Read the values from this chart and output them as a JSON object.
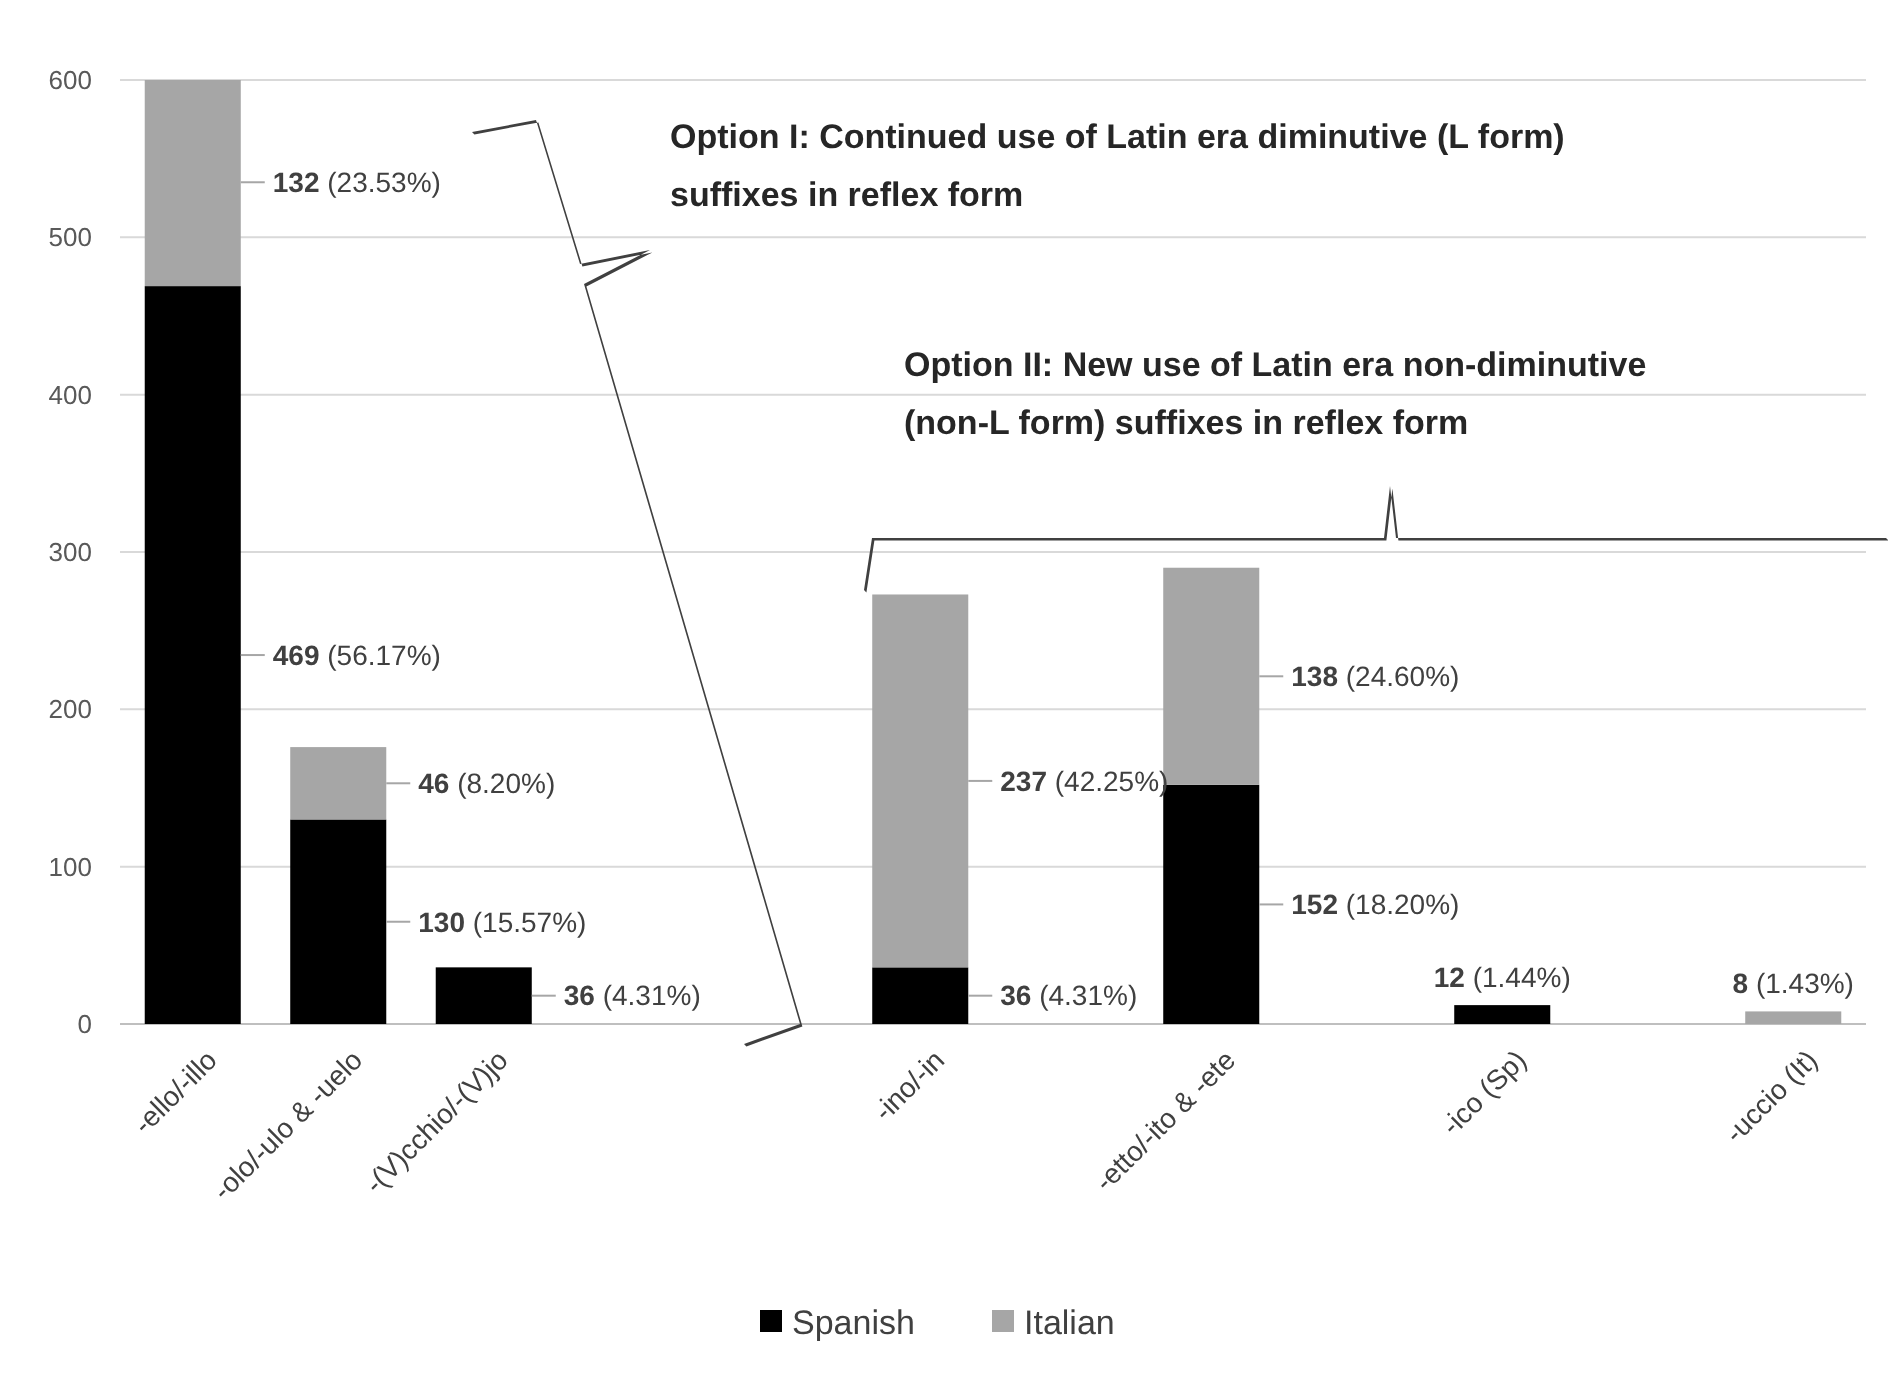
{
  "chart_data": {
    "type": "bar",
    "stacked": true,
    "categories": [
      "-ello/-illo",
      "-olo/-ulo & -uelo",
      "-(V)cchio/-(V)jo",
      null,
      null,
      "-ino/-in",
      null,
      "-etto/-ito & -ete",
      null,
      "-ico (Sp)",
      null,
      "-uccio (It)"
    ],
    "series": [
      {
        "name": "Spanish",
        "color": "#000000",
        "values": [
          469,
          130,
          36,
          null,
          null,
          36,
          null,
          152,
          null,
          12,
          null,
          null
        ],
        "value_labels": [
          "469 (56.17%)",
          "130 (15.57%)",
          "36 (4.31%)",
          null,
          null,
          "36 (4.31%)",
          null,
          "152 (18.20%)",
          null,
          "12 (1.44%)",
          null,
          null
        ]
      },
      {
        "name": "Italian",
        "color": "#a6a6a6",
        "values": [
          132,
          46,
          null,
          null,
          null,
          237,
          null,
          138,
          null,
          null,
          null,
          8
        ],
        "value_labels": [
          "132 (23.53%)",
          "46 (8.20%)",
          null,
          null,
          null,
          "237 (42.25%)",
          null,
          "138 (24.60%)",
          null,
          null,
          null,
          "8 (1.43%)"
        ]
      }
    ],
    "ylim": [
      0,
      600
    ],
    "yticks": [
      0,
      100,
      200,
      300,
      400,
      500,
      600
    ],
    "grid": "y",
    "legend": "bottom",
    "annotations": [
      "Option I: Continued use of Latin era diminutive (L form) suffixes in reflex form",
      "Option II: New use of Latin era non-diminutive (non-L form) suffixes in reflex form"
    ]
  }
}
